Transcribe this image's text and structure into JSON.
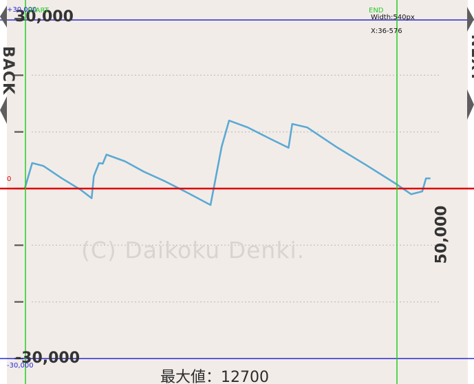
{
  "chart_data": {
    "type": "line",
    "ylim": [
      -30000,
      30000
    ],
    "y_tick_step": 10000,
    "y_tick_labels": {
      "top": "30,000",
      "bottom": "-30,000"
    },
    "x_tick_label": "50,000",
    "grid": true,
    "series": [
      {
        "color": "#5aaad4",
        "points": [
          [
            0,
            0
          ],
          [
            1000,
            4500
          ],
          [
            2500,
            4000
          ],
          [
            5000,
            1800
          ],
          [
            7500,
            -200
          ],
          [
            9000,
            -1700
          ],
          [
            9300,
            2200
          ],
          [
            10000,
            4500
          ],
          [
            10500,
            4400
          ],
          [
            11000,
            6000
          ],
          [
            13500,
            4800
          ],
          [
            16000,
            3000
          ],
          [
            19000,
            1200
          ],
          [
            22000,
            -800
          ],
          [
            25000,
            -2900
          ],
          [
            26500,
            7400
          ],
          [
            27500,
            12000
          ],
          [
            30000,
            10800
          ],
          [
            33000,
            8800
          ],
          [
            35500,
            7200
          ],
          [
            36000,
            11400
          ],
          [
            38000,
            10800
          ],
          [
            42000,
            7300
          ],
          [
            46000,
            4100
          ],
          [
            50000,
            800
          ],
          [
            52000,
            -1000
          ],
          [
            53500,
            -500
          ],
          [
            54000,
            1800
          ],
          [
            54500,
            1800
          ]
        ]
      }
    ],
    "markers": {
      "upper_limit": 30000,
      "lower_limit": -30000,
      "zero": 0,
      "start_x": 0,
      "end_x": 50000
    }
  },
  "labels": {
    "upper_limit": "+30,000",
    "start": "START",
    "end": "END",
    "width": "Width:540px",
    "x_range": "X:36-576",
    "zero": "0",
    "lower_limit": "-30,000",
    "back": "BACK",
    "next": "NEXT",
    "watermark": "(C) Daikoku Denki.",
    "max_value": "最大値：12700"
  },
  "colors": {
    "background": "#f2ece8",
    "series": "#5aaad4",
    "zero_line": "#dd0000",
    "limit_lines": "#2a2ad0",
    "marker_lines": "#22cc22",
    "grid": "#c9c4c1"
  }
}
